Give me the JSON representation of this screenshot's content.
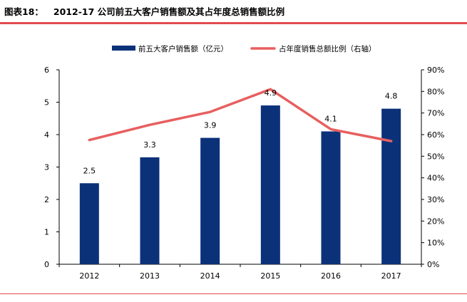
{
  "figure": {
    "number": "图表18：",
    "title": "2012-17 公司前五大客户销售额及其占年度总销售额比例"
  },
  "colors": {
    "bar": "#0b3179",
    "line": "#e85f5f",
    "rule": "#e34a4e"
  },
  "chart_data": {
    "type": "bar",
    "categories": [
      "2012",
      "2013",
      "2014",
      "2015",
      "2016",
      "2017"
    ],
    "series": [
      {
        "name": "前五大客户销售额（亿元）",
        "type": "bar",
        "axis": "left",
        "values": [
          2.5,
          3.3,
          3.9,
          4.9,
          4.1,
          4.8
        ],
        "value_labels": [
          "2.5",
          "3.3",
          "3.9",
          "4.9",
          "4.1",
          "4.8"
        ]
      },
      {
        "name": "占年度销售总额比例（右轴）",
        "type": "line",
        "axis": "right",
        "values": [
          57.5,
          64.5,
          70.5,
          81,
          62.5,
          57
        ]
      }
    ],
    "y_left": {
      "range": [
        0,
        6
      ],
      "ticks": [
        "0",
        "1",
        "2",
        "3",
        "4",
        "5",
        "6"
      ]
    },
    "y_right": {
      "range": [
        0,
        90
      ],
      "ticks": [
        "0%",
        "10%",
        "20%",
        "30%",
        "40%",
        "50%",
        "60%",
        "70%",
        "80%",
        "90%"
      ]
    },
    "legend_position": "top-center"
  }
}
